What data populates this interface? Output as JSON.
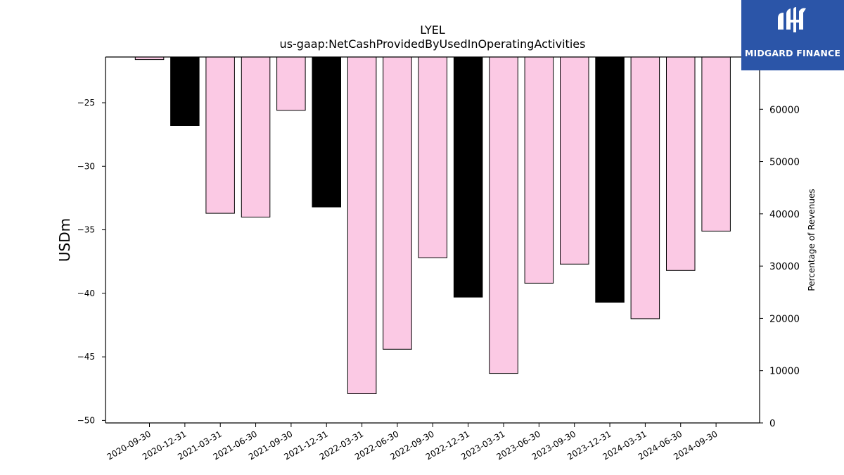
{
  "chart_data": {
    "type": "bar",
    "title": "LYEL",
    "subtitle": "us-gaap:NetCashProvidedByUsedInOperatingActivities",
    "ylabel": "USDm",
    "y2label": "Percentage of Revenues",
    "categories": [
      "2020-09-30",
      "2020-12-31",
      "2021-03-31",
      "2021-06-30",
      "2021-09-30",
      "2021-12-31",
      "2022-03-31",
      "2022-06-30",
      "2022-09-30",
      "2022-12-31",
      "2023-03-31",
      "2023-06-30",
      "2023-09-30",
      "2023-12-31",
      "2024-03-31",
      "2024-06-30",
      "2024-09-30"
    ],
    "values": [
      -21.6,
      -26.8,
      -33.7,
      -34.0,
      -25.6,
      -33.2,
      -47.9,
      -44.4,
      -37.2,
      -40.3,
      -46.3,
      -39.2,
      -37.7,
      -40.7,
      -42.0,
      -38.2,
      -35.1
    ],
    "bar_colors": [
      "#fbc9e4",
      "#000000",
      "#fbc9e4",
      "#fbc9e4",
      "#fbc9e4",
      "#000000",
      "#fbc9e4",
      "#fbc9e4",
      "#fbc9e4",
      "#000000",
      "#fbc9e4",
      "#fbc9e4",
      "#fbc9e4",
      "#000000",
      "#fbc9e4",
      "#fbc9e4",
      "#fbc9e4"
    ],
    "ylim": [
      -50.2,
      -21.4
    ],
    "yticks": [
      -25,
      -30,
      -35,
      -40,
      -45,
      -50
    ],
    "ytick_labels": [
      "−25",
      "−30",
      "−35",
      "−40",
      "−45",
      "−50"
    ],
    "y2lim": [
      0,
      70000
    ],
    "y2ticks": [
      0,
      10000,
      20000,
      30000,
      40000,
      50000,
      60000
    ],
    "y2tick_labels": [
      "0",
      "10000",
      "20000",
      "30000",
      "40000",
      "50000",
      "60000"
    ],
    "grid": false,
    "legend": "none"
  },
  "logo": {
    "text": "MIDGARD FINANCE"
  }
}
